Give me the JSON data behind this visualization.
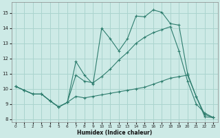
{
  "xlabel": "Humidex (Indice chaleur)",
  "bg_color": "#cdeae6",
  "grid_color": "#aad4ce",
  "line_color": "#2e7d6e",
  "xlim": [
    -0.5,
    23.5
  ],
  "ylim": [
    7.8,
    15.7
  ],
  "yticks": [
    8,
    9,
    10,
    11,
    12,
    13,
    14,
    15
  ],
  "xticks": [
    0,
    1,
    2,
    3,
    4,
    5,
    6,
    7,
    8,
    9,
    10,
    11,
    12,
    13,
    14,
    15,
    16,
    17,
    18,
    19,
    20,
    21,
    22,
    23
  ],
  "line1_x": [
    0,
    1,
    2,
    3,
    4,
    5,
    6,
    7,
    8,
    9,
    10,
    11,
    12,
    13,
    14,
    15,
    16,
    17,
    18,
    19,
    20,
    21,
    22,
    23
  ],
  "line1_y": [
    10.15,
    9.9,
    9.65,
    9.65,
    9.2,
    8.8,
    9.1,
    11.8,
    10.9,
    10.3,
    14.0,
    13.3,
    12.5,
    13.3,
    14.8,
    14.75,
    15.2,
    15.05,
    14.3,
    14.2,
    11.0,
    9.5,
    8.15,
    8.1
  ],
  "line2_x": [
    0,
    1,
    2,
    3,
    4,
    5,
    6,
    7,
    8,
    9,
    10,
    11,
    12,
    13,
    14,
    15,
    16,
    17,
    18,
    19,
    20,
    21,
    22,
    23
  ],
  "line2_y": [
    10.15,
    9.9,
    9.65,
    9.65,
    9.2,
    8.8,
    9.1,
    10.9,
    10.5,
    10.4,
    10.8,
    11.3,
    11.9,
    12.4,
    13.0,
    13.4,
    13.7,
    13.9,
    14.1,
    12.5,
    10.5,
    9.0,
    8.4,
    8.1
  ],
  "line3_x": [
    0,
    1,
    2,
    3,
    4,
    5,
    6,
    7,
    8,
    9,
    10,
    11,
    12,
    13,
    14,
    15,
    16,
    17,
    18,
    19,
    20,
    21,
    22,
    23
  ],
  "line3_y": [
    10.15,
    9.9,
    9.65,
    9.65,
    9.2,
    8.8,
    9.1,
    9.5,
    9.4,
    9.5,
    9.6,
    9.7,
    9.8,
    9.9,
    10.0,
    10.1,
    10.3,
    10.5,
    10.7,
    10.8,
    10.9,
    9.5,
    8.3,
    8.1
  ]
}
